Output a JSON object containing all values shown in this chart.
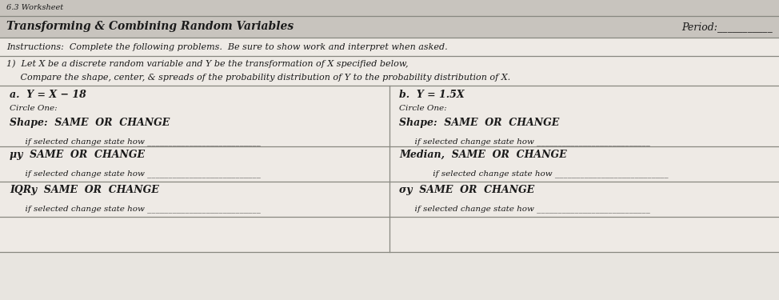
{
  "top_label": "6.3 Worksheet",
  "title_left": "Transforming & Combining Random Variables",
  "title_right": "Period:___________",
  "instructions": "Instructions:  Complete the following problems.  Be sure to show work and interpret when asked.",
  "problem1_intro1": "1)  Let X be a discrete random variable and Y be the transformation of X specified below,",
  "problem1_intro2": "     Compare the shape, center, & spreads of the probability distribution of Y to the probability distribution of X.",
  "col_a_header": "a.  Y = X − 18",
  "col_b_header": "b.  Y = 1.5X",
  "circle_one_label": "Circle One:",
  "shape_label_a": "Shape:  SAME  OR  CHANGE",
  "shape_sub_a": "      if selected change state how ___________________________",
  "shape_label_b": "Shape:  SAME  OR  CHANGE",
  "shape_sub_b": "      if selected change state how ___________________________",
  "mu_label": "μy  SAME  OR  CHANGE",
  "mu_sub": "      if selected change state how ___________________________",
  "median_label": "Median,  SAME  OR  CHANGE",
  "median_sub": "             if selected change state how ___________________________",
  "iqr_label": "IQRy  SAME  OR  CHANGE",
  "iqr_sub": "      if selected change state how ___________________________",
  "sigma_label": "σy  SAME  OR  CHANGE",
  "sigma_sub": "      if selected change state how ___________________________",
  "bg_color": "#e8e5e0",
  "cell_bg": "#eeeae5",
  "header_bg": "#c8c4be",
  "line_color": "#888880",
  "text_color": "#1a1a1a"
}
